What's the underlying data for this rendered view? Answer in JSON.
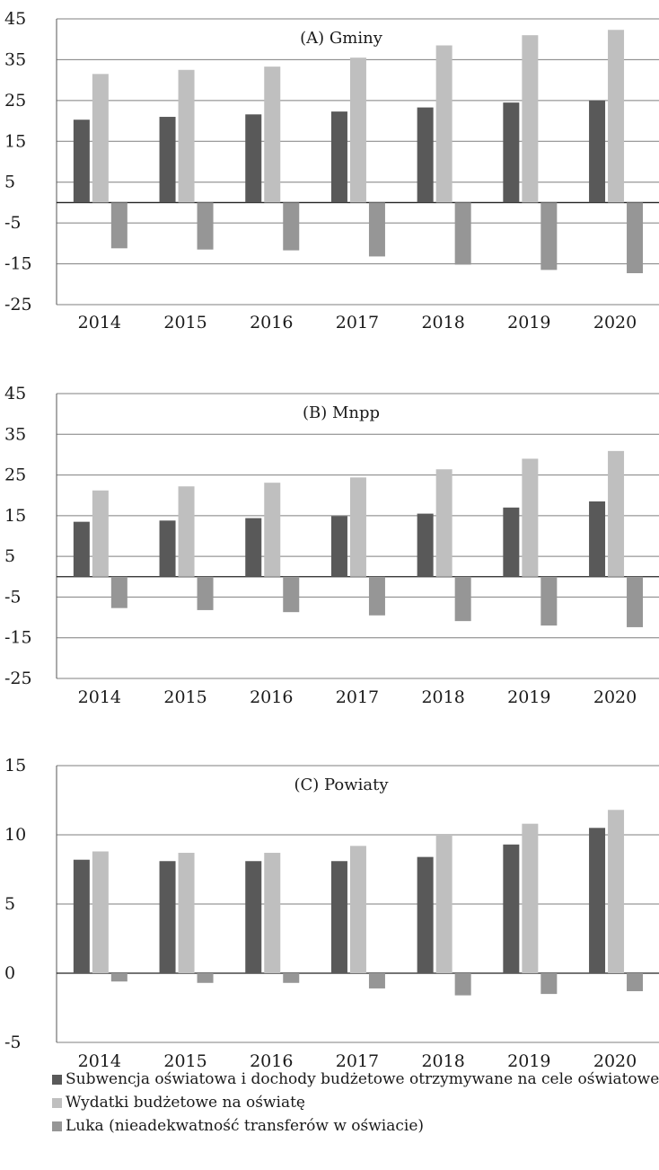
{
  "chart_data": [
    {
      "type": "bar",
      "title": "(A) Gminy",
      "categories": [
        "2014",
        "2015",
        "2016",
        "2017",
        "2018",
        "2019",
        "2020"
      ],
      "ylim": [
        -25,
        45
      ],
      "yticks": [
        "45",
        "35",
        "25",
        "15",
        "5",
        "-5",
        "-15",
        "-25"
      ],
      "grid": true,
      "series": [
        {
          "name": "Subwencja oświatowa i dochody budżetowe otrzymywane na cele oświatowe",
          "color": "#595959",
          "values": [
            20.3,
            21.0,
            21.6,
            22.3,
            23.3,
            24.5,
            25.0
          ]
        },
        {
          "name": "Wydatki budżetowe na oświatę",
          "color": "#bfbfbf",
          "values": [
            31.5,
            32.5,
            33.3,
            35.5,
            38.5,
            41.0,
            42.3
          ]
        },
        {
          "name": "Luka (nieadekwatność transferów w oświacie)",
          "color": "#969696",
          "values": [
            -11.2,
            -11.5,
            -11.7,
            -13.2,
            -15.2,
            -16.5,
            -17.3
          ]
        }
      ]
    },
    {
      "type": "bar",
      "title": "(B) Mnpp",
      "categories": [
        "2014",
        "2015",
        "2016",
        "2017",
        "2018",
        "2019",
        "2020"
      ],
      "ylim": [
        -25,
        45
      ],
      "yticks": [
        "45",
        "35",
        "25",
        "15",
        "5",
        "-5",
        "-15",
        "-25"
      ],
      "grid": true,
      "series": [
        {
          "name": "Subwencja oświatowa i dochody budżetowe otrzymywane na cele oświatowe",
          "color": "#595959",
          "values": [
            13.5,
            13.8,
            14.4,
            14.9,
            15.5,
            17.0,
            18.5
          ]
        },
        {
          "name": "Wydatki budżetowe na oświatę",
          "color": "#bfbfbf",
          "values": [
            21.2,
            22.2,
            23.1,
            24.4,
            26.4,
            29.0,
            30.9
          ]
        },
        {
          "name": "Luka (nieadekwatność transferów w oświacie)",
          "color": "#969696",
          "values": [
            -7.7,
            -8.2,
            -8.7,
            -9.5,
            -10.9,
            -12.0,
            -12.4
          ]
        }
      ]
    },
    {
      "type": "bar",
      "title": "(C) Powiaty",
      "categories": [
        "2014",
        "2015",
        "2016",
        "2017",
        "2018",
        "2019",
        "2020"
      ],
      "ylim": [
        -5,
        15
      ],
      "yticks": [
        "15",
        "10",
        "5",
        "0",
        "-5"
      ],
      "grid": true,
      "series": [
        {
          "name": "Subwencja oświatowa i dochody budżetowe otrzymywane na cele oświatowe",
          "color": "#595959",
          "values": [
            8.2,
            8.1,
            8.1,
            8.1,
            8.4,
            9.3,
            10.5
          ]
        },
        {
          "name": "Wydatki budżetowe na oświatę",
          "color": "#bfbfbf",
          "values": [
            8.8,
            8.7,
            8.7,
            9.2,
            10.0,
            10.8,
            11.8
          ]
        },
        {
          "name": "Luka (nieadekwatność transferów w oświacie)",
          "color": "#969696",
          "values": [
            -0.6,
            -0.7,
            -0.7,
            -1.1,
            -1.6,
            -1.5,
            -1.3
          ]
        }
      ]
    }
  ],
  "legend": {
    "placement": "bottom",
    "items": [
      {
        "label": "Subwencja oświatowa i dochody budżetowe otrzymywane na cele oświatowe",
        "color": "#595959"
      },
      {
        "label": "Wydatki budżetowe na oświatę",
        "color": "#bfbfbf"
      },
      {
        "label": "Luka (nieadekwatność transferów w oświacie)",
        "color": "#969696"
      }
    ]
  }
}
